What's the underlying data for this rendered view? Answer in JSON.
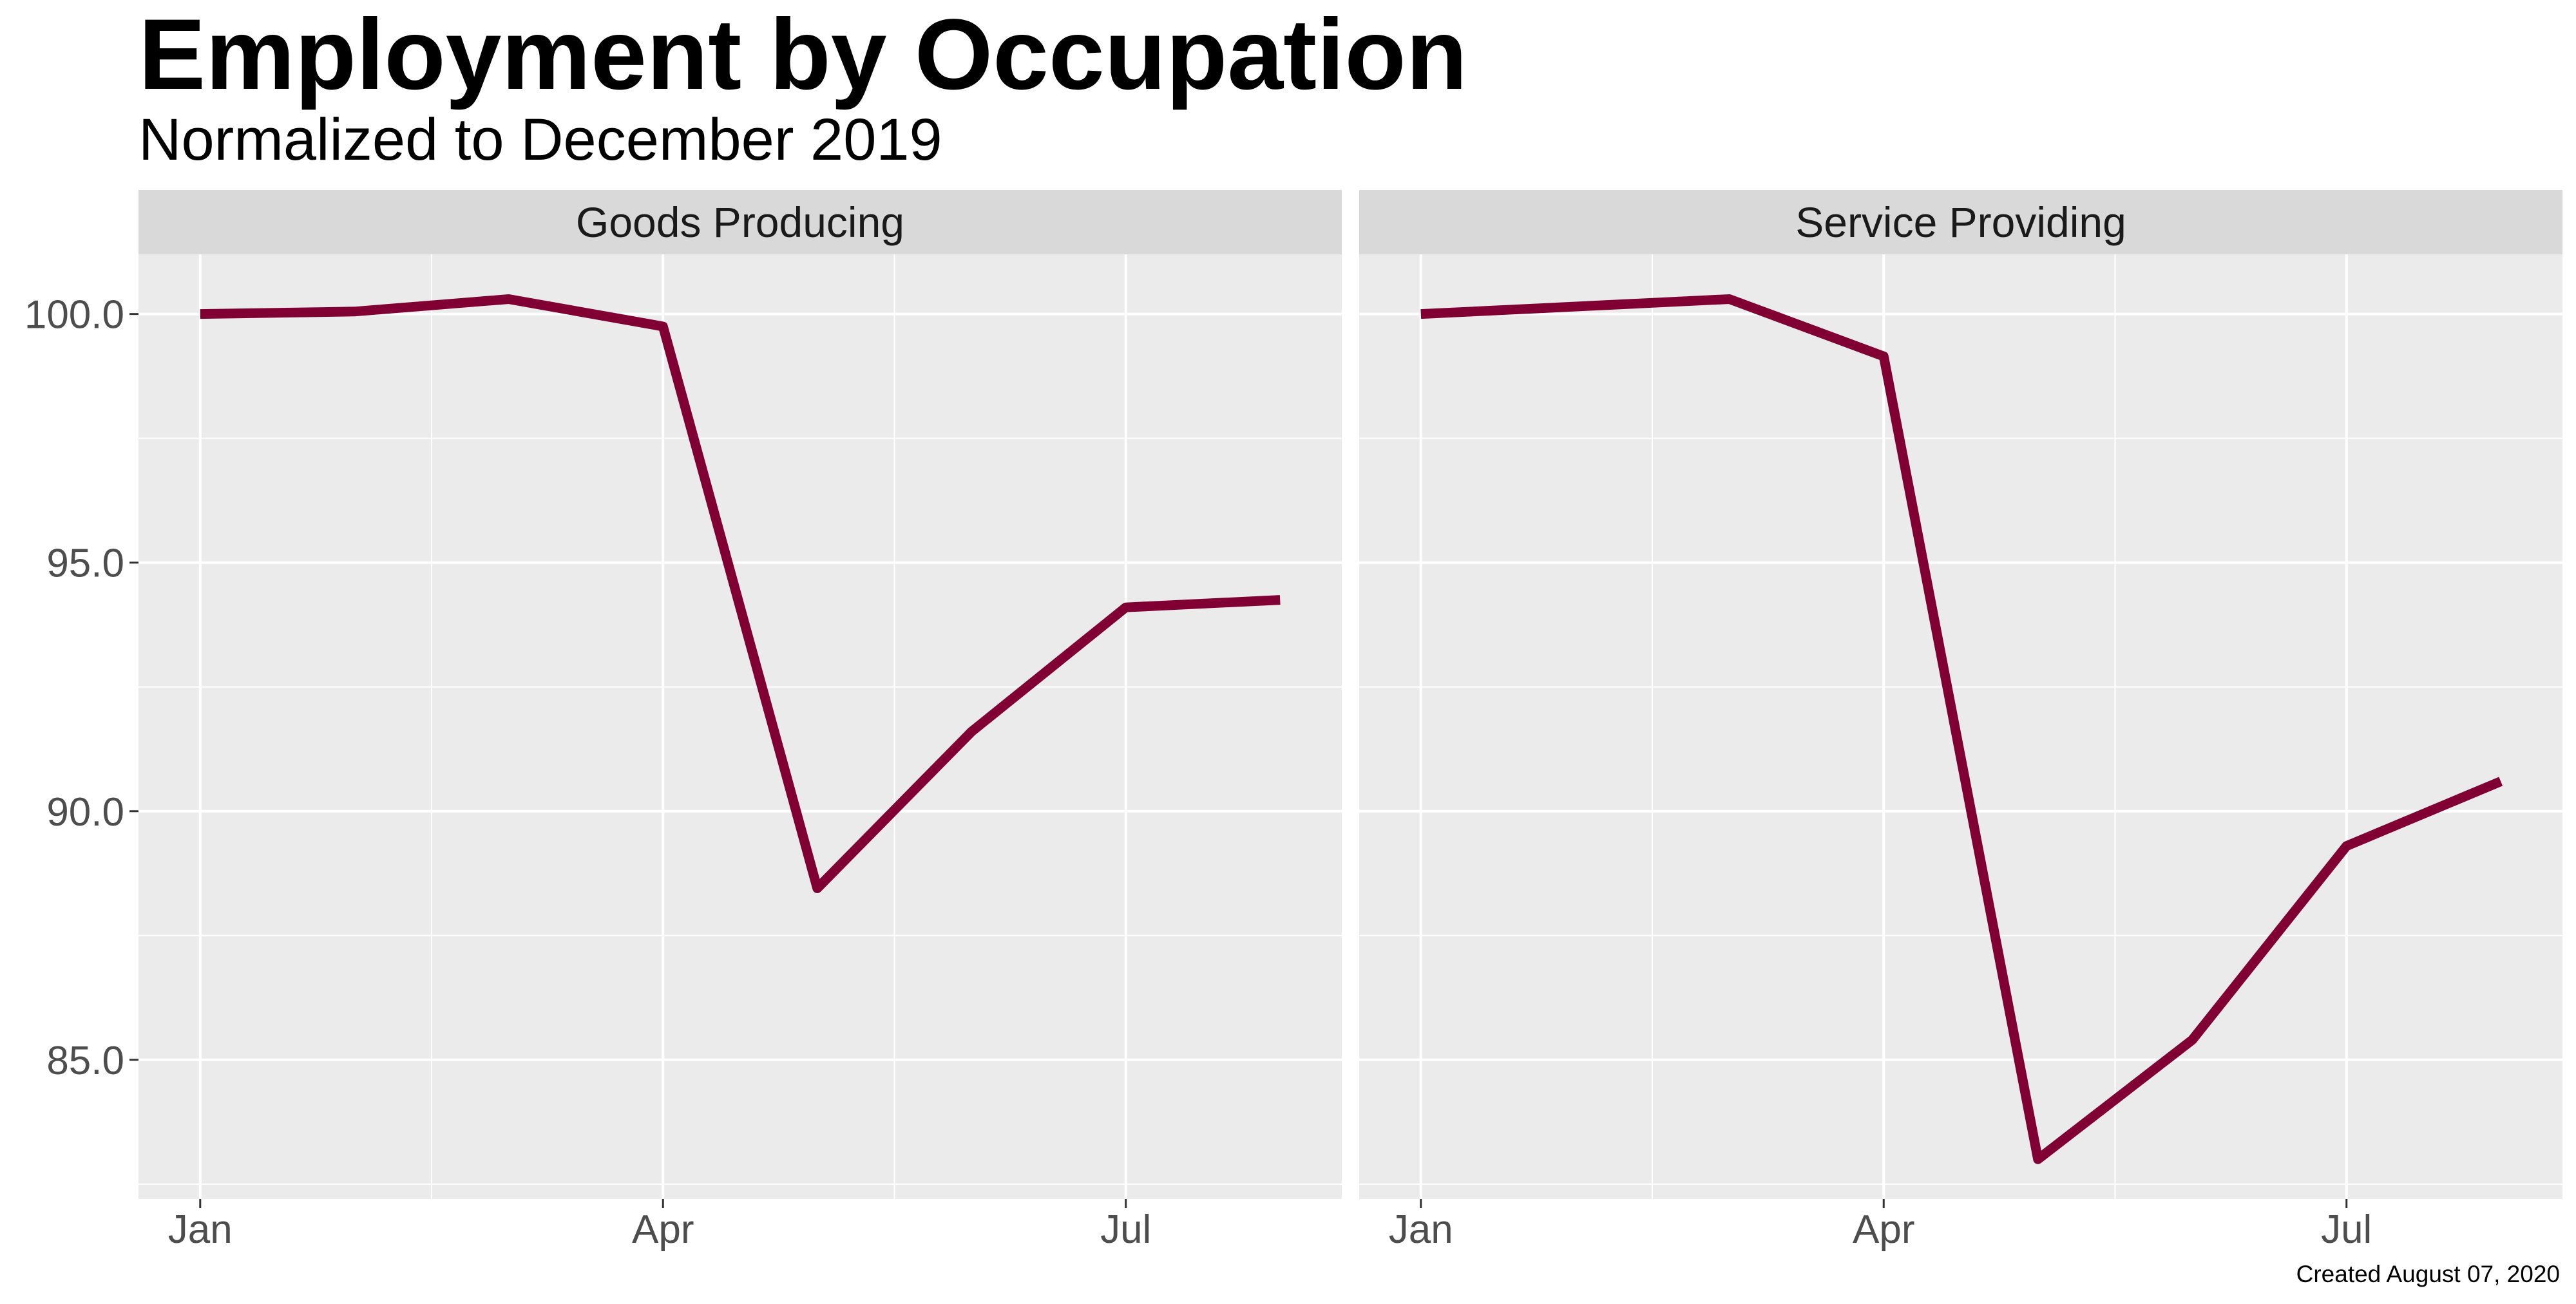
{
  "title": "Employment by Occupation",
  "subtitle": "Normalized to December 2019",
  "caption": "Created August 07, 2020",
  "chart_data": {
    "type": "line",
    "title": "Employment by Occupation",
    "subtitle": "Normalized to December 2019",
    "xlabel": "",
    "ylabel": "",
    "x": [
      "2020-01",
      "2020-02",
      "2020-03",
      "2020-04",
      "2020-05",
      "2020-06",
      "2020-07",
      "2020-08"
    ],
    "x_ticks": [
      "Jan",
      "Apr",
      "Jul"
    ],
    "y_ticks": [
      "85.0",
      "90.0",
      "95.0",
      "100.0"
    ],
    "ylim": [
      82.2,
      101.2
    ],
    "grid": true,
    "line_color": "#800033",
    "panel_background": "#EBEBEB",
    "strip_background": "#D9D9D9",
    "panels": [
      {
        "label": "Goods Producing",
        "values": [
          100.0,
          100.05,
          100.3,
          99.75,
          88.45,
          91.6,
          94.1,
          94.25
        ]
      },
      {
        "label": "Service Providing",
        "values": [
          100.0,
          null,
          100.3,
          99.15,
          83.0,
          85.4,
          89.3,
          90.6
        ]
      }
    ]
  }
}
